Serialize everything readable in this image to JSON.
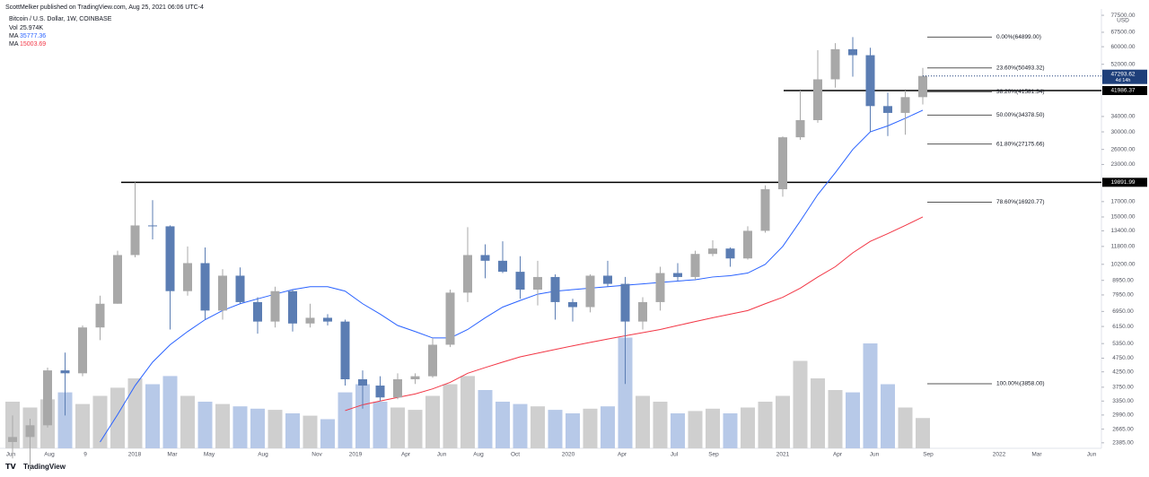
{
  "header": {
    "author": "ScottMelker published on TradingView.com, Aug 25, 2021 06:06 UTC-4",
    "symbol": "Bitcoin / U.S. Dollar, 1W, COINBASE",
    "indicators": [
      {
        "name": "Vol",
        "value": "25.974K",
        "color": "#131722"
      },
      {
        "name": "MA",
        "value": "35777.36",
        "color": "#2962ff"
      },
      {
        "name": "MA",
        "value": "15003.69",
        "color": "#f23645"
      }
    ]
  },
  "footer": "TradingView",
  "chart_data": {
    "type": "candlestick",
    "log_scale": true,
    "y_unit": "USD",
    "up_color": "#a8a8a8",
    "down_color": "#5b7db3",
    "volume_up_color": "#cfcfcf",
    "volume_down_color": "#b7c9e8",
    "open": [
      2400,
      2500,
      2750,
      4300,
      4200,
      6100,
      7400,
      11000,
      14000,
      13900,
      8200,
      10300,
      7000,
      9300,
      7500,
      6400,
      8200,
      6300,
      6600,
      6400,
      4000,
      3800,
      3450,
      4000,
      4100,
      5300,
      8100,
      11000,
      10500,
      9600,
      8300,
      9200,
      7500,
      7200,
      9300,
      8700,
      6400,
      7500,
      9500,
      9200,
      11100,
      11600,
      10700,
      13400,
      18800,
      28700,
      33000,
      46000,
      58800,
      56000,
      37000,
      35000,
      39800
    ],
    "high": [
      2980,
      2900,
      4400,
      4970,
      6200,
      7900,
      11400,
      19891.99,
      17200,
      14000,
      11800,
      11700,
      9800,
      9950,
      7800,
      8500,
      8300,
      7400,
      6800,
      6500,
      4300,
      4100,
      4200,
      4200,
      5600,
      8300,
      13800,
      12000,
      12300,
      10900,
      10500,
      9400,
      7700,
      9400,
      10500,
      9200,
      7800,
      10000,
      10300,
      11400,
      12400,
      11700,
      13900,
      19400,
      28900,
      41986.37,
      58300,
      61800,
      64899,
      59500,
      41300,
      42000,
      50500
    ],
    "low": [
      2100,
      1900,
      2700,
      2980,
      4100,
      5500,
      7400,
      10800,
      12500,
      6000,
      7900,
      6500,
      6500,
      7400,
      5800,
      6100,
      5900,
      6100,
      6200,
      3800,
      3150,
      3350,
      3400,
      3850,
      4050,
      5200,
      7500,
      9100,
      9500,
      7700,
      7300,
      6500,
      6400,
      6900,
      8500,
      3850,
      6000,
      7000,
      8900,
      9000,
      10900,
      10000,
      10600,
      13200,
      17700,
      28100,
      32300,
      43000,
      47000,
      30000,
      29000,
      29300,
      37500
    ],
    "close": [
      2500,
      2750,
      4300,
      4200,
      6100,
      7400,
      11000,
      14000,
      13900,
      8200,
      10300,
      7000,
      9300,
      7500,
      6400,
      8200,
      6300,
      6600,
      6400,
      4000,
      3800,
      3450,
      4000,
      4100,
      5300,
      8100,
      11000,
      10500,
      9600,
      8300,
      9200,
      7500,
      7200,
      9300,
      8700,
      6400,
      7500,
      9500,
      9200,
      11100,
      11600,
      10700,
      13400,
      18800,
      28700,
      33000,
      46000,
      58800,
      56000,
      37000,
      35000,
      39800,
      47293.62
    ],
    "volume": [
      40,
      35,
      42,
      48,
      38,
      45,
      52,
      60,
      55,
      62,
      45,
      40,
      38,
      36,
      34,
      33,
      30,
      28,
      25,
      48,
      55,
      40,
      35,
      33,
      45,
      55,
      62,
      50,
      40,
      38,
      36,
      33,
      30,
      34,
      36,
      95,
      45,
      40,
      30,
      32,
      34,
      30,
      35,
      40,
      45,
      75,
      60,
      50,
      48,
      90,
      55,
      35,
      25.974
    ],
    "series": [
      {
        "color": "#2962ff",
        "values": [
          null,
          null,
          null,
          null,
          null,
          2400,
          3000,
          3800,
          4600,
          5300,
          5900,
          6500,
          7000,
          7400,
          7700,
          8000,
          8300,
          8500,
          8500,
          8200,
          7400,
          6800,
          6200,
          5900,
          5600,
          5600,
          6000,
          6600,
          7200,
          7600,
          8000,
          8200,
          8300,
          8400,
          8500,
          8600,
          8700,
          8800,
          8900,
          9000,
          9200,
          9300,
          9500,
          10200,
          11800,
          14500,
          18000,
          21500,
          26000,
          30000,
          31500,
          33500,
          35777.36
        ]
      },
      {
        "color": "#f23645",
        "values": [
          null,
          null,
          null,
          null,
          null,
          null,
          null,
          null,
          null,
          null,
          null,
          null,
          null,
          null,
          null,
          null,
          null,
          null,
          null,
          3100,
          3250,
          3350,
          3450,
          3550,
          3700,
          3900,
          4200,
          4400,
          4600,
          4800,
          4950,
          5100,
          5250,
          5400,
          5550,
          5700,
          5850,
          6000,
          6200,
          6400,
          6600,
          6800,
          7000,
          7400,
          7800,
          8400,
          9200,
          10000,
          11200,
          12300,
          13100,
          14000,
          15003.69
        ]
      }
    ],
    "last_price": 47293.62,
    "countdown": "4d 14h",
    "hlines": [
      19891.99,
      41986.37
    ],
    "fib_levels": [
      {
        "value": 64899,
        "label": "0.00%(64899.00)"
      },
      {
        "value": 50493.32,
        "label": "23.60%(50493.32)"
      },
      {
        "value": 41581.34,
        "label": "38.20%(41581.34)"
      },
      {
        "value": 34378.5,
        "label": "50.00%(34378.50)"
      },
      {
        "value": 27175.66,
        "label": "61.80%(27175.66)"
      },
      {
        "value": 16920.77,
        "label": "78.60%(16920.77)"
      },
      {
        "value": 3858,
        "label": "100.00%(3858.00)"
      }
    ],
    "ylim": [
      2280,
      81600
    ],
    "yticks": [
      {
        "value": 77500,
        "label": "77500.00"
      },
      {
        "value": 67500,
        "label": "67500.00"
      },
      {
        "value": 60000,
        "label": "60000.00"
      },
      {
        "value": 52000,
        "label": "52000.00"
      },
      {
        "value": 34000,
        "label": "34000.00"
      },
      {
        "value": 30000,
        "label": "30000.00"
      },
      {
        "value": 26000,
        "label": "26000.00"
      },
      {
        "value": 23000,
        "label": "23000.00"
      },
      {
        "value": 17000,
        "label": "17000.00"
      },
      {
        "value": 15000,
        "label": "15000.00"
      },
      {
        "value": 13400,
        "label": "13400.00"
      },
      {
        "value": 11800,
        "label": "11800.00"
      },
      {
        "value": 10200,
        "label": "10200.00"
      },
      {
        "value": 8950,
        "label": "8950.00"
      },
      {
        "value": 7950,
        "label": "7950.00"
      },
      {
        "value": 6950,
        "label": "6950.00"
      },
      {
        "value": 6150,
        "label": "6150.00"
      },
      {
        "value": 5350,
        "label": "5350.00"
      },
      {
        "value": 4750,
        "label": "4750.00"
      },
      {
        "value": 4250,
        "label": "4250.00"
      },
      {
        "value": 3750,
        "label": "3750.00"
      },
      {
        "value": 3350,
        "label": "3350.00"
      },
      {
        "value": 2990,
        "label": "2990.00"
      },
      {
        "value": 2665,
        "label": "2665.00"
      },
      {
        "value": 2385,
        "label": "2385.00"
      }
    ],
    "xticks": [
      "Jun",
      "Aug",
      "9",
      "2018",
      "Mar",
      "May",
      "Aug",
      "Nov",
      "2019",
      "Apr",
      "Jun",
      "Aug",
      "Oct",
      "2020",
      "Apr",
      "Jul",
      "Sep",
      "2021",
      "Apr",
      "Jun",
      "Sep",
      "2022",
      "Mar",
      "Jun"
    ]
  }
}
